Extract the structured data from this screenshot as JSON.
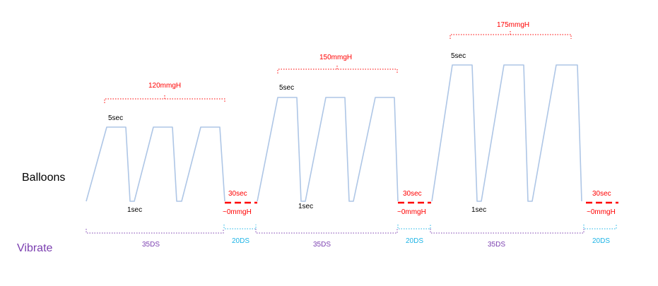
{
  "row_labels": {
    "balloons": "Balloons",
    "vibrate": "Vibrate"
  },
  "colors": {
    "line": "#aec6e6",
    "pressure": "#ff0000",
    "text": "#000000",
    "vibrate_long": "#7b3fb0",
    "vibrate_short": "#1cb4e6"
  },
  "groups": [
    {
      "pressure": "120mmgH",
      "hold": "5sec",
      "deflate": "1sec",
      "rest": "30sec",
      "rest_pressure": "~0mmgH",
      "vibrate": "35DS",
      "rest_vibrate": "20DS"
    },
    {
      "pressure": "150mmgH",
      "hold": "5sec",
      "deflate": "1sec",
      "rest": "30sec",
      "rest_pressure": "~0mmgH",
      "vibrate": "35DS",
      "rest_vibrate": "20DS"
    },
    {
      "pressure": "175mmgH",
      "hold": "5sec",
      "deflate": "1sec",
      "rest": "30sec",
      "rest_pressure": "~0mmgH",
      "vibrate": "35DS",
      "rest_vibrate": "20DS"
    }
  ]
}
